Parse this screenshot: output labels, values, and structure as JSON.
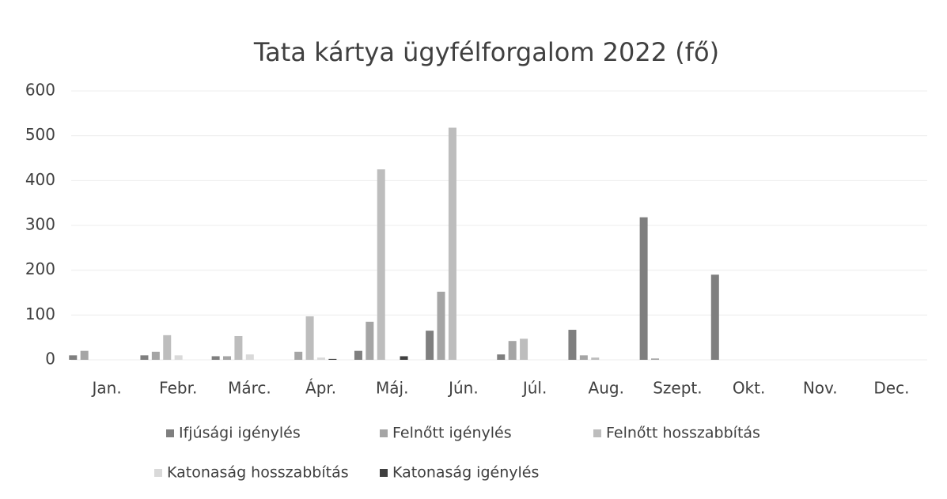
{
  "chart_data": {
    "type": "bar",
    "title": "Tata kártya ügyfélforgalom 2022 (fő)",
    "categories": [
      "Jan.",
      "Febr.",
      "Márc.",
      "Ápr.",
      "Máj.",
      "Jún.",
      "Júl.",
      "Aug.",
      "Szept.",
      "Okt.",
      "Nov.",
      "Dec."
    ],
    "series": [
      {
        "name": "Ifjúsági igénylés",
        "color": "#7f7f7f",
        "values": [
          10,
          10,
          8,
          0,
          20,
          65,
          12,
          67,
          318,
          190,
          0,
          0
        ]
      },
      {
        "name": "Felnőtt igénylés",
        "color": "#a5a5a5",
        "values": [
          20,
          18,
          8,
          18,
          85,
          152,
          42,
          10,
          3,
          0,
          0,
          0
        ]
      },
      {
        "name": "Felnőtt hosszabbítás",
        "color": "#bdbdbd",
        "values": [
          0,
          55,
          53,
          97,
          425,
          518,
          47,
          5,
          0,
          0,
          0,
          0
        ]
      },
      {
        "name": "Katonaság hosszabbítás",
        "color": "#d9d9d9",
        "values": [
          0,
          10,
          12,
          5,
          0,
          0,
          0,
          0,
          0,
          0,
          0,
          0
        ]
      },
      {
        "name": "Katonaság igénylés",
        "color": "#404040",
        "values": [
          0,
          0,
          0,
          2,
          8,
          0,
          0,
          0,
          0,
          0,
          0,
          0
        ]
      }
    ],
    "ylim": [
      0,
      600
    ],
    "yticks": [
      0,
      100,
      200,
      300,
      400,
      500,
      600
    ],
    "grid": true
  }
}
